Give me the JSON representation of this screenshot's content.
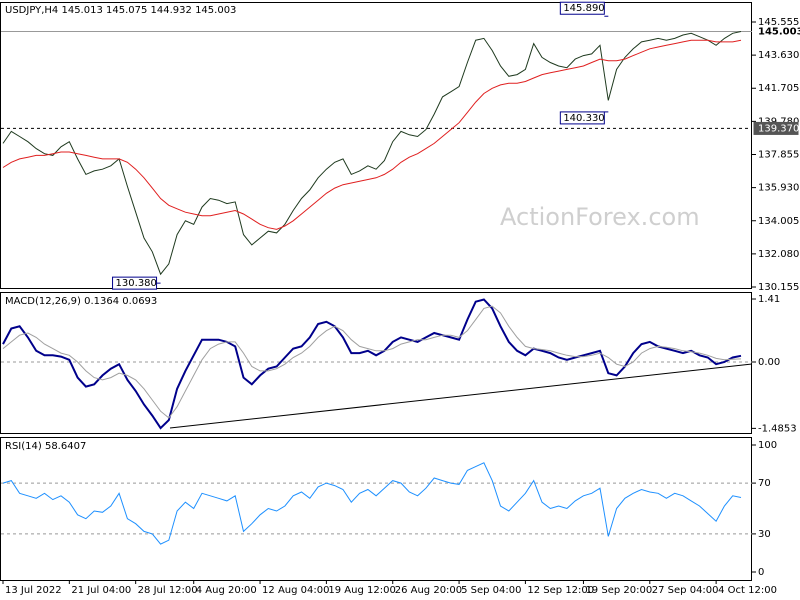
{
  "chart_data": [
    {
      "type": "line",
      "title": "USDJPY,H4 145.013 145.075 144.932 145.003",
      "watermark": "ActionForex.com",
      "xlim": [
        0,
        89
      ],
      "ylim": [
        130.097,
        146.717
      ],
      "yticks": [
        {
          "value": 145.555,
          "label": "145.555"
        },
        {
          "value": 143.63,
          "label": "143.630"
        },
        {
          "value": 141.705,
          "label": "141.705"
        },
        {
          "value": 139.78,
          "label": "139.780"
        },
        {
          "value": 137.855,
          "label": "137.855"
        },
        {
          "value": 135.93,
          "label": "135.930"
        },
        {
          "value": 134.005,
          "label": "134.005"
        },
        {
          "value": 132.08,
          "label": "132.080"
        },
        {
          "value": 130.155,
          "label": "130.155"
        }
      ],
      "levels": [
        {
          "value": 145.003,
          "label": "145.003"
        },
        {
          "value": 139.37,
          "label": "139.370"
        }
      ],
      "annotations": [
        {
          "value": 145.89,
          "label": "145.890"
        },
        {
          "value": 140.33,
          "label": "140.330"
        },
        {
          "value": 130.38,
          "label": "130.380"
        }
      ],
      "series": [
        {
          "color": "#1f3a1f",
          "values": [
            138.5,
            139.2,
            138.9,
            138.6,
            138.2,
            137.9,
            137.8,
            138.3,
            138.6,
            137.6,
            136.7,
            136.9,
            137.0,
            137.2,
            137.6,
            136.0,
            134.5,
            133.0,
            132.2,
            130.9,
            131.5,
            133.2,
            134.0,
            133.8,
            134.8,
            135.3,
            135.2,
            135.0,
            135.1,
            133.2,
            132.6,
            133.0,
            133.4,
            133.3,
            133.8,
            134.6,
            135.3,
            135.8,
            136.5,
            137.0,
            137.4,
            137.6,
            136.7,
            136.9,
            137.2,
            137.0,
            137.5,
            138.6,
            139.2,
            139.0,
            138.9,
            139.3,
            140.2,
            141.2,
            141.5,
            141.8,
            143.2,
            144.5,
            144.6,
            143.9,
            143.0,
            142.4,
            142.5,
            142.8,
            144.3,
            143.5,
            143.2,
            143.0,
            142.9,
            143.4,
            143.6,
            143.7,
            144.2,
            141.0,
            142.8,
            143.5,
            144.0,
            144.4,
            144.5,
            144.6,
            144.5,
            144.6,
            144.8,
            144.9,
            144.7,
            144.5,
            144.2,
            144.6,
            144.9,
            145.0
          ]
        },
        {
          "color": "#e02020",
          "values": [
            137.1,
            137.4,
            137.6,
            137.7,
            137.8,
            137.8,
            137.9,
            138.0,
            138.0,
            137.9,
            137.8,
            137.7,
            137.6,
            137.6,
            137.6,
            137.4,
            137.0,
            136.5,
            135.9,
            135.3,
            134.9,
            134.7,
            134.5,
            134.4,
            134.3,
            134.3,
            134.4,
            134.5,
            134.6,
            134.4,
            134.1,
            133.8,
            133.6,
            133.5,
            133.7,
            134.0,
            134.4,
            134.8,
            135.2,
            135.6,
            135.9,
            136.1,
            136.2,
            136.3,
            136.4,
            136.5,
            136.7,
            137.0,
            137.4,
            137.7,
            137.9,
            138.2,
            138.5,
            138.9,
            139.3,
            139.7,
            140.3,
            140.9,
            141.4,
            141.7,
            141.9,
            142.0,
            142.0,
            142.1,
            142.3,
            142.5,
            142.6,
            142.7,
            142.8,
            142.9,
            143.0,
            143.2,
            143.4,
            143.3,
            143.3,
            143.4,
            143.6,
            143.8,
            144.0,
            144.1,
            144.2,
            144.3,
            144.4,
            144.5,
            144.5,
            144.5,
            144.4,
            144.4,
            144.4,
            144.5
          ]
        }
      ]
    },
    {
      "type": "line",
      "title": "MACD(12,26,9) 0.1364 0.0693",
      "xlim": [
        0,
        89
      ],
      "ylim": [
        -1.589,
        1.567
      ],
      "yticks": [
        1.41,
        {
          "value": 0,
          "label": "0.00"
        },
        -1.4853
      ],
      "grid": [
        0
      ],
      "series": [
        {
          "color": "#00008b",
          "values": [
            0.4,
            0.75,
            0.8,
            0.55,
            0.25,
            0.15,
            0.15,
            0.12,
            0.05,
            -0.35,
            -0.55,
            -0.5,
            -0.3,
            -0.15,
            -0.05,
            -0.4,
            -0.65,
            -0.95,
            -1.2,
            -1.48,
            -1.3,
            -0.6,
            -0.2,
            0.15,
            0.5,
            0.5,
            0.5,
            0.45,
            0.35,
            -0.35,
            -0.5,
            -0.3,
            -0.15,
            -0.1,
            0.1,
            0.3,
            0.35,
            0.55,
            0.85,
            0.9,
            0.8,
            0.55,
            0.2,
            0.2,
            0.25,
            0.15,
            0.25,
            0.45,
            0.55,
            0.5,
            0.45,
            0.55,
            0.65,
            0.6,
            0.55,
            0.5,
            0.95,
            1.35,
            1.4,
            1.2,
            0.8,
            0.45,
            0.25,
            0.15,
            0.3,
            0.25,
            0.2,
            0.1,
            0.05,
            0.1,
            0.15,
            0.2,
            0.25,
            -0.25,
            -0.3,
            -0.1,
            0.2,
            0.4,
            0.45,
            0.35,
            0.3,
            0.25,
            0.2,
            0.25,
            0.15,
            0.1,
            -0.05,
            0.0,
            0.1,
            0.14
          ]
        },
        {
          "color": "#a0a0a0",
          "values": [
            0.3,
            0.45,
            0.6,
            0.65,
            0.55,
            0.4,
            0.3,
            0.2,
            0.15,
            0.0,
            -0.2,
            -0.35,
            -0.4,
            -0.35,
            -0.25,
            -0.3,
            -0.4,
            -0.6,
            -0.85,
            -1.1,
            -1.25,
            -1.0,
            -0.65,
            -0.3,
            0.05,
            0.3,
            0.4,
            0.45,
            0.45,
            0.2,
            -0.1,
            -0.2,
            -0.2,
            -0.15,
            -0.05,
            0.1,
            0.2,
            0.35,
            0.55,
            0.7,
            0.8,
            0.7,
            0.5,
            0.35,
            0.3,
            0.25,
            0.25,
            0.3,
            0.4,
            0.45,
            0.5,
            0.5,
            0.55,
            0.6,
            0.6,
            0.55,
            0.7,
            0.95,
            1.2,
            1.25,
            1.1,
            0.8,
            0.55,
            0.35,
            0.3,
            0.28,
            0.25,
            0.2,
            0.15,
            0.12,
            0.12,
            0.15,
            0.2,
            0.1,
            -0.05,
            -0.1,
            0.0,
            0.2,
            0.3,
            0.35,
            0.33,
            0.3,
            0.25,
            0.23,
            0.2,
            0.15,
            0.08,
            0.05,
            0.06,
            0.07
          ]
        }
      ]
    },
    {
      "type": "line",
      "title": "RSI(14) 58.6407",
      "xlim": [
        0,
        89
      ],
      "ylim": [
        -6.3,
        106.3
      ],
      "yticks": [
        100,
        70,
        30,
        0
      ],
      "grid": [
        70,
        30
      ],
      "xticks": [
        {
          "value": 0,
          "label": "13 Jul 2022"
        },
        {
          "value": 8,
          "label": "21 Jul 04:00"
        },
        {
          "value": 16,
          "label": "28 Jul 12:00"
        },
        {
          "value": 23,
          "label": "4 Aug 20:00"
        },
        {
          "value": 31,
          "label": "12 Aug 04:00"
        },
        {
          "value": 39,
          "label": "19 Aug 12:00"
        },
        {
          "value": 47,
          "label": "26 Aug 20:00"
        },
        {
          "value": 55,
          "label": "5 Sep 04:00"
        },
        {
          "value": 63,
          "label": "12 Sep 12:00"
        },
        {
          "value": 70,
          "label": "19 Sep 20:00"
        },
        {
          "value": 78,
          "label": "27 Sep 04:00"
        },
        {
          "value": 86,
          "label": "4 Oct 12:00"
        }
      ],
      "series": [
        {
          "color": "#1e90ff",
          "values": [
            70,
            72,
            62,
            60,
            58,
            62,
            57,
            60,
            55,
            45,
            42,
            48,
            47,
            52,
            62,
            42,
            38,
            32,
            30,
            22,
            25,
            48,
            55,
            50,
            62,
            60,
            58,
            56,
            60,
            32,
            38,
            45,
            50,
            48,
            52,
            60,
            63,
            58,
            67,
            70,
            68,
            65,
            55,
            62,
            65,
            60,
            66,
            72,
            70,
            63,
            60,
            66,
            74,
            72,
            70,
            69,
            80,
            83,
            86,
            72,
            52,
            48,
            55,
            62,
            72,
            55,
            50,
            52,
            50,
            56,
            60,
            62,
            66,
            28,
            50,
            58,
            62,
            65,
            63,
            62,
            58,
            62,
            60,
            56,
            52,
            46,
            40,
            52,
            60,
            58.6407
          ]
        }
      ]
    }
  ]
}
